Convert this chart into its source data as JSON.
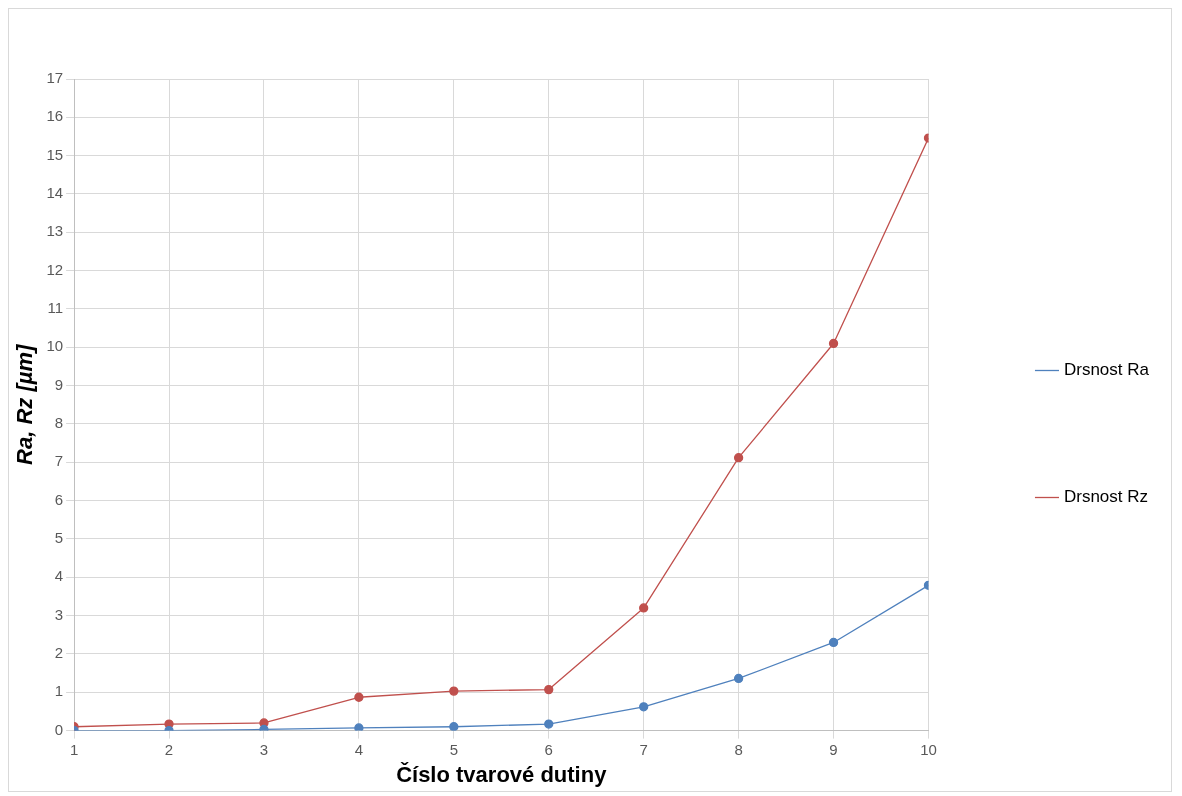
{
  "chart_data": {
    "type": "line",
    "xlabel": "Číslo tvarové dutiny",
    "ylabel": "Ra, Rz [µm]",
    "x": [
      1,
      2,
      3,
      4,
      5,
      6,
      7,
      8,
      9,
      10
    ],
    "series": [
      {
        "name": "Drsnost Ra",
        "color": "#4f81bd",
        "values": [
          0.0,
          0.0,
          0.03,
          0.07,
          0.1,
          0.17,
          0.62,
          1.36,
          2.3,
          3.79
        ]
      },
      {
        "name": "Drsnost Rz",
        "color": "#c0504d",
        "values": [
          0.1,
          0.17,
          0.2,
          0.87,
          1.03,
          1.07,
          3.2,
          7.12,
          10.1,
          15.46
        ]
      }
    ],
    "xlim": [
      1,
      10
    ],
    "xticks": [
      1,
      2,
      3,
      4,
      5,
      6,
      7,
      8,
      9,
      10
    ],
    "ylim": [
      0,
      17
    ],
    "yticks": [
      0,
      1,
      2,
      3,
      4,
      5,
      6,
      7,
      8,
      9,
      10,
      11,
      12,
      13,
      14,
      15,
      16,
      17
    ],
    "grid": true,
    "legend": "right",
    "marker": "circle",
    "line_style": "solid"
  }
}
